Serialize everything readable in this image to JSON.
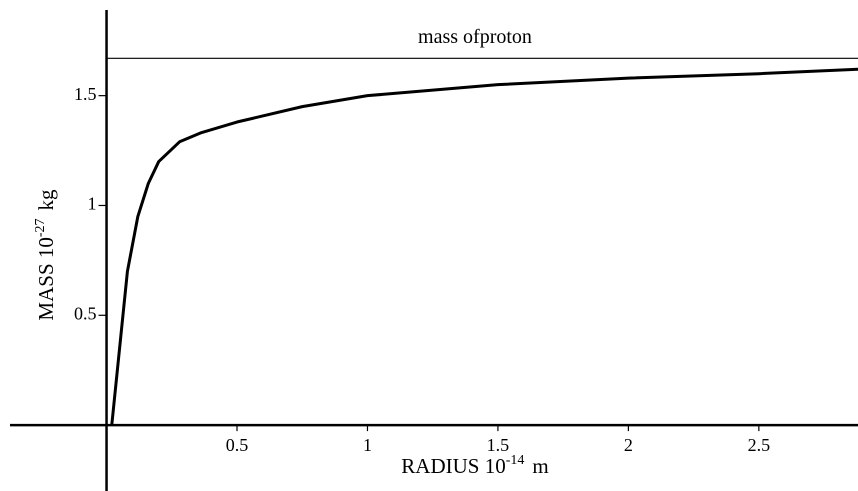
{
  "chart_data": {
    "type": "line",
    "x_label": "RADIUS  10",
    "x_label_exp": "-14",
    "x_label_unit": "m",
    "y_label": "MASS  10",
    "y_label_exp": "-27",
    "y_label_unit": "kg",
    "reference_line": {
      "value": 1.67,
      "label": "mass ofproton"
    },
    "x": [
      0.02,
      0.05,
      0.08,
      0.12,
      0.16,
      0.2,
      0.28,
      0.36,
      0.5,
      0.75,
      1,
      1.5,
      2,
      2.5,
      2.88
    ],
    "series": [
      {
        "name": "mass",
        "color": "#000000",
        "values": [
          0,
          0.35,
          0.7,
          0.95,
          1.1,
          1.2,
          1.29,
          1.33,
          1.38,
          1.45,
          1.5,
          1.55,
          1.58,
          1.6,
          1.62
        ]
      }
    ],
    "xlim": [
      -0.37,
      2.88
    ],
    "ylim": [
      -0.3,
      1.89
    ],
    "xticks": [
      0.5,
      1,
      1.5,
      2,
      2.5
    ],
    "yticks": [
      0.5,
      1,
      1.5
    ]
  }
}
